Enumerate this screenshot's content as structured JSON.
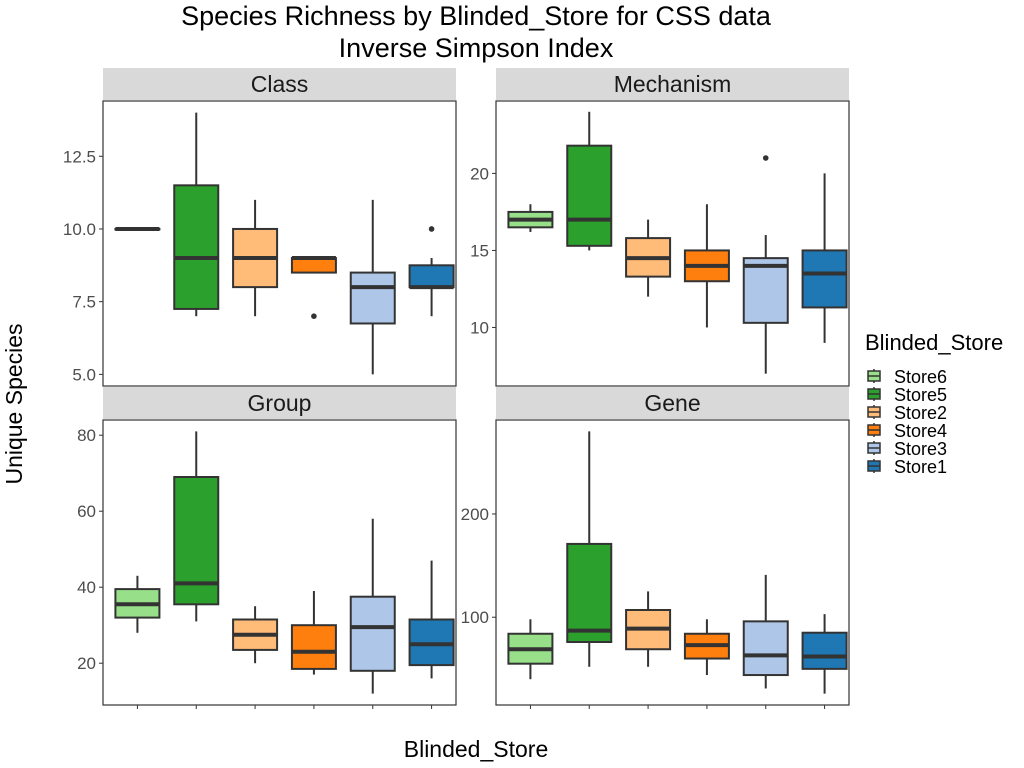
{
  "chart_data": {
    "type": "box",
    "title": "Species Richness by Blinded_Store for CSS data",
    "subtitle": "Inverse Simpson Index",
    "xlabel": "Blinded_Store",
    "ylabel": "Unique Species",
    "legend": {
      "title": "Blinded_Store",
      "placement": "right",
      "entries": [
        {
          "name": "Store6",
          "color": "#98df8a"
        },
        {
          "name": "Store5",
          "color": "#2ca02c"
        },
        {
          "name": "Store2",
          "color": "#ffbb78"
        },
        {
          "name": "Store4",
          "color": "#ff7f0e"
        },
        {
          "name": "Store3",
          "color": "#aec7e8"
        },
        {
          "name": "Store1",
          "color": "#1f77b4"
        }
      ]
    },
    "categories": [
      "Store6",
      "Store5",
      "Store2",
      "Store4",
      "Store3",
      "Store1"
    ],
    "facets": [
      {
        "name": "Class",
        "ylim": [
          4.6,
          14.4
        ],
        "yticks": [
          5.0,
          7.5,
          10.0,
          12.5
        ],
        "ytick_labels": [
          "5.0",
          "7.5",
          "10.0",
          "12.5"
        ],
        "boxes": [
          {
            "store": "Store6",
            "min": 10,
            "q1": 10,
            "median": 10,
            "q3": 10,
            "max": 10,
            "outliers": []
          },
          {
            "store": "Store5",
            "min": 7,
            "q1": 7.25,
            "median": 9,
            "q3": 11.5,
            "max": 14,
            "outliers": []
          },
          {
            "store": "Store2",
            "min": 7,
            "q1": 8,
            "median": 9,
            "q3": 10,
            "max": 11,
            "outliers": []
          },
          {
            "store": "Store4",
            "min": 8.5,
            "q1": 8.5,
            "median": 9,
            "q3": 9,
            "max": 9,
            "outliers": [
              7
            ]
          },
          {
            "store": "Store3",
            "min": 5,
            "q1": 6.75,
            "median": 8,
            "q3": 8.5,
            "max": 11,
            "outliers": []
          },
          {
            "store": "Store1",
            "min": 7,
            "q1": 8,
            "median": 8,
            "q3": 8.75,
            "max": 9,
            "outliers": [
              10
            ]
          }
        ]
      },
      {
        "name": "Mechanism",
        "ylim": [
          6.2,
          24.7
        ],
        "yticks": [
          10,
          15,
          20
        ],
        "ytick_labels": [
          "10",
          "15",
          "20"
        ],
        "boxes": [
          {
            "store": "Store6",
            "min": 16.2,
            "q1": 16.5,
            "median": 17,
            "q3": 17.5,
            "max": 18,
            "outliers": []
          },
          {
            "store": "Store5",
            "min": 15,
            "q1": 15.3,
            "median": 17,
            "q3": 21.8,
            "max": 24,
            "outliers": []
          },
          {
            "store": "Store2",
            "min": 12,
            "q1": 13.3,
            "median": 14.5,
            "q3": 15.8,
            "max": 17,
            "outliers": []
          },
          {
            "store": "Store4",
            "min": 10,
            "q1": 13,
            "median": 14,
            "q3": 15,
            "max": 18,
            "outliers": []
          },
          {
            "store": "Store3",
            "min": 7,
            "q1": 10.3,
            "median": 14,
            "q3": 14.5,
            "max": 16,
            "outliers": [
              21
            ]
          },
          {
            "store": "Store1",
            "min": 9,
            "q1": 11.3,
            "median": 13.5,
            "q3": 15,
            "max": 20,
            "outliers": []
          }
        ]
      },
      {
        "name": "Group",
        "ylim": [
          9,
          84
        ],
        "yticks": [
          20,
          40,
          60,
          80
        ],
        "ytick_labels": [
          "20",
          "40",
          "60",
          "80"
        ],
        "boxes": [
          {
            "store": "Store6",
            "min": 28,
            "q1": 32,
            "median": 35.5,
            "q3": 39.5,
            "max": 43,
            "outliers": []
          },
          {
            "store": "Store5",
            "min": 31,
            "q1": 35.5,
            "median": 41,
            "q3": 69,
            "max": 81,
            "outliers": []
          },
          {
            "store": "Store2",
            "min": 20,
            "q1": 23.5,
            "median": 27.5,
            "q3": 31.5,
            "max": 35,
            "outliers": []
          },
          {
            "store": "Store4",
            "min": 17,
            "q1": 18.5,
            "median": 23,
            "q3": 30,
            "max": 39,
            "outliers": []
          },
          {
            "store": "Store3",
            "min": 12,
            "q1": 18,
            "median": 29.5,
            "q3": 37.5,
            "max": 58,
            "outliers": []
          },
          {
            "store": "Store1",
            "min": 16,
            "q1": 19.5,
            "median": 25,
            "q3": 31.5,
            "max": 47,
            "outliers": []
          }
        ]
      },
      {
        "name": "Gene",
        "ylim": [
          15,
          291
        ],
        "yticks": [
          100,
          200
        ],
        "ytick_labels": [
          "100",
          "200"
        ],
        "boxes": [
          {
            "store": "Store6",
            "min": 40,
            "q1": 55,
            "median": 69,
            "q3": 84,
            "max": 98,
            "outliers": []
          },
          {
            "store": "Store5",
            "min": 52,
            "q1": 76,
            "median": 87,
            "q3": 171,
            "max": 280,
            "outliers": []
          },
          {
            "store": "Store2",
            "min": 52,
            "q1": 69,
            "median": 89,
            "q3": 107,
            "max": 125,
            "outliers": []
          },
          {
            "store": "Store4",
            "min": 44,
            "q1": 60,
            "median": 73,
            "q3": 84,
            "max": 98,
            "outliers": []
          },
          {
            "store": "Store3",
            "min": 31,
            "q1": 44,
            "median": 63,
            "q3": 96,
            "max": 141,
            "outliers": []
          },
          {
            "store": "Store1",
            "min": 26,
            "q1": 50,
            "median": 62,
            "q3": 85,
            "max": 103,
            "outliers": []
          }
        ]
      }
    ]
  }
}
